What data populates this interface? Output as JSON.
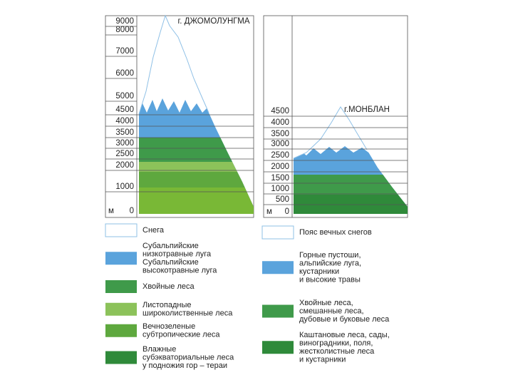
{
  "mountains": [
    {
      "name": "г. ДЖОМОЛУНГМА",
      "unit": "м",
      "altitudes": [
        9000,
        8000,
        7000,
        6000,
        5000,
        4500,
        4000,
        3500,
        3000,
        2500,
        2000,
        1000,
        0
      ]
    },
    {
      "name": "г.МОНБЛАН",
      "unit": "м",
      "altitudes": [
        4500,
        4000,
        3500,
        3000,
        2500,
        2000,
        1500,
        1000,
        500,
        0
      ]
    }
  ],
  "legend_left": [
    {
      "lines": [
        "Снега"
      ]
    },
    {
      "lines": [
        "Субальпийские",
        "низкотравные луга",
        "Субальпийские",
        "высокотравные луга"
      ]
    },
    {
      "lines": [
        "Хвойные леса"
      ]
    },
    {
      "lines": [
        "Листопадные",
        "широколиственные леса"
      ]
    },
    {
      "lines": [
        "Вечнозеленые",
        "субтропические леса"
      ]
    },
    {
      "lines": [
        "Влажные",
        "субэкваториальные леса",
        "у подножия гор – тераи"
      ]
    }
  ],
  "legend_right": [
    {
      "lines": [
        "Пояс вечных снегов"
      ]
    },
    {
      "lines": [
        "Горные пустоши,",
        "альпийские луга,",
        "кустарники",
        "и высокие травы"
      ]
    },
    {
      "lines": [
        "Хвойные леса,",
        "смешанные леса,",
        "дубовые и буковые леса"
      ]
    },
    {
      "lines": [
        "Каштановые леса, сады,",
        "виноградники, поля,",
        "жестколистные леса",
        "и кустарники"
      ]
    }
  ]
}
